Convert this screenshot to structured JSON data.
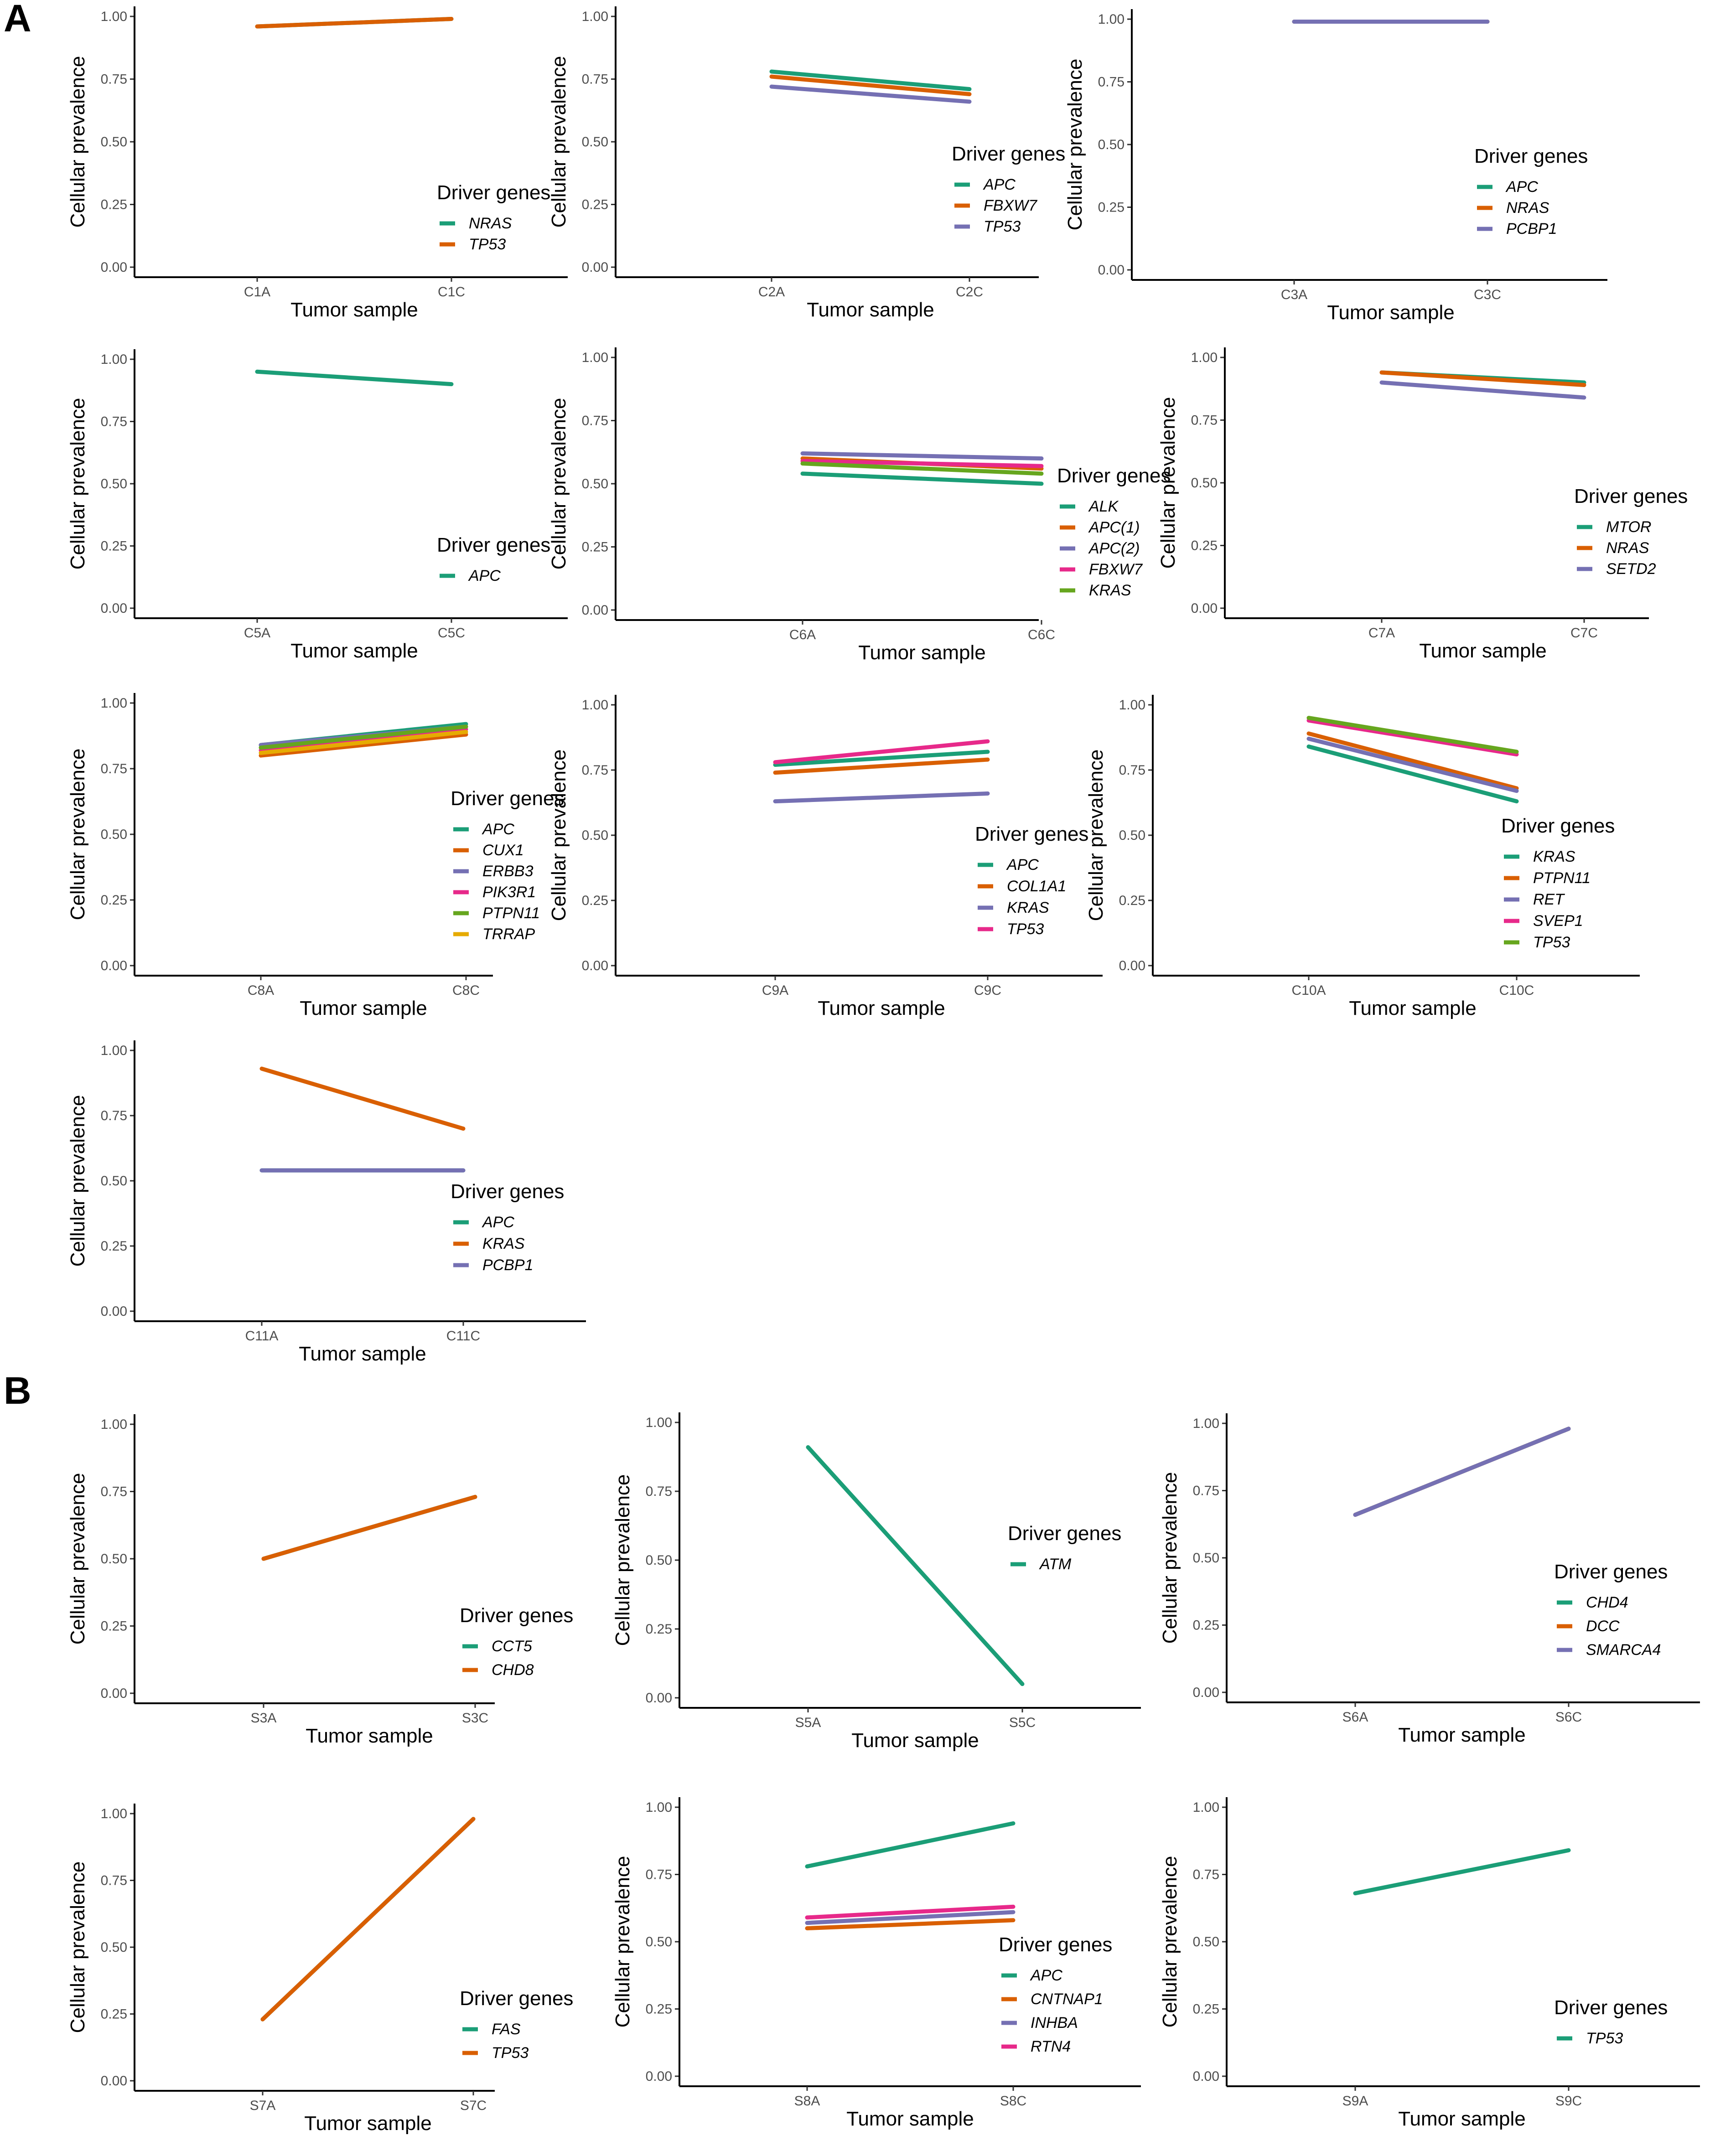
{
  "figure": {
    "panel_labels": [
      "A",
      "B"
    ]
  },
  "chart_data": [
    {
      "type": "line",
      "panel": "A",
      "title": "",
      "xlabel": "Tumor sample",
      "ylabel": "Cellular prevalence",
      "legend_title": "Driver genes",
      "legend_position": "right",
      "grid": false,
      "ylim": [
        0,
        1
      ],
      "yticks": [
        "0.00",
        "0.25",
        "0.50",
        "0.75",
        "1.00"
      ],
      "categories": [
        "C1A",
        "C1C"
      ],
      "series": [
        {
          "name": "NRAS",
          "color": "#1b9e77",
          "values": [
            0.96,
            0.99
          ]
        },
        {
          "name": "TP53",
          "color": "#d95f02",
          "values": [
            0.96,
            0.99
          ]
        }
      ]
    },
    {
      "type": "line",
      "panel": "A",
      "title": "",
      "xlabel": "Tumor sample",
      "ylabel": "Cellular prevalence",
      "legend_title": "Driver genes",
      "legend_position": "bottom-right",
      "grid": false,
      "ylim": [
        0,
        1
      ],
      "yticks": [
        "0.00",
        "0.25",
        "0.50",
        "0.75",
        "1.00"
      ],
      "categories": [
        "C2A",
        "C2C"
      ],
      "series": [
        {
          "name": "APC",
          "color": "#1b9e77",
          "values": [
            0.78,
            0.71
          ]
        },
        {
          "name": "FBXW7",
          "color": "#d95f02",
          "values": [
            0.76,
            0.69
          ]
        },
        {
          "name": "TP53",
          "color": "#7570b3",
          "values": [
            0.72,
            0.66
          ]
        }
      ]
    },
    {
      "type": "line",
      "panel": "A",
      "title": "",
      "xlabel": "Tumor sample",
      "ylabel": "Cellular prevalence",
      "legend_title": "Driver genes",
      "legend_position": "bottom-right",
      "grid": false,
      "ylim": [
        0,
        1
      ],
      "yticks": [
        "0.00",
        "0.25",
        "0.50",
        "0.75",
        "1.00"
      ],
      "categories": [
        "C3A",
        "C3C"
      ],
      "series": [
        {
          "name": "APC",
          "color": "#1b9e77",
          "values": [
            0.99,
            0.99
          ]
        },
        {
          "name": "NRAS",
          "color": "#d95f02",
          "values": [
            0.99,
            0.99
          ]
        },
        {
          "name": "PCBP1",
          "color": "#7570b3",
          "values": [
            0.99,
            0.99
          ]
        }
      ]
    },
    {
      "type": "line",
      "panel": "A",
      "title": "",
      "xlabel": "Tumor sample",
      "ylabel": "Cellular prevalence",
      "legend_title": "Driver genes",
      "legend_position": "right",
      "grid": false,
      "ylim": [
        0,
        1
      ],
      "yticks": [
        "0.00",
        "0.25",
        "0.50",
        "0.75",
        "1.00"
      ],
      "categories": [
        "C5A",
        "C5C"
      ],
      "series": [
        {
          "name": "APC",
          "color": "#1b9e77",
          "values": [
            0.95,
            0.9
          ]
        }
      ]
    },
    {
      "type": "line",
      "panel": "A",
      "title": "",
      "xlabel": "Tumor sample",
      "ylabel": "Cellular prevalence",
      "legend_title": "Driver genes",
      "legend_position": "right",
      "grid": false,
      "ylim": [
        0,
        1
      ],
      "yticks": [
        "0.00",
        "0.25",
        "0.50",
        "0.75",
        "1.00"
      ],
      "categories": [
        "C6A",
        "C6C"
      ],
      "series": [
        {
          "name": "ALK",
          "color": "#1b9e77",
          "values": [
            0.54,
            0.5
          ]
        },
        {
          "name": "APC(1)",
          "color": "#d95f02",
          "values": [
            0.6,
            0.56
          ]
        },
        {
          "name": "APC(2)",
          "color": "#7570b3",
          "values": [
            0.62,
            0.6
          ]
        },
        {
          "name": "FBXW7",
          "color": "#e7298a",
          "values": [
            0.59,
            0.57
          ]
        },
        {
          "name": "KRAS",
          "color": "#66a61e",
          "values": [
            0.58,
            0.54
          ]
        }
      ]
    },
    {
      "type": "line",
      "panel": "A",
      "title": "",
      "xlabel": "Tumor sample",
      "ylabel": "Cellular prevalence",
      "legend_title": "Driver genes",
      "legend_position": "bottom-right",
      "grid": false,
      "ylim": [
        0,
        1
      ],
      "yticks": [
        "0.00",
        "0.25",
        "0.50",
        "0.75",
        "1.00"
      ],
      "categories": [
        "C7A",
        "C7C"
      ],
      "series": [
        {
          "name": "MTOR",
          "color": "#1b9e77",
          "values": [
            0.94,
            0.9
          ]
        },
        {
          "name": "NRAS",
          "color": "#d95f02",
          "values": [
            0.94,
            0.89
          ]
        },
        {
          "name": "SETD2",
          "color": "#7570b3",
          "values": [
            0.9,
            0.84
          ]
        }
      ]
    },
    {
      "type": "line",
      "panel": "A",
      "title": "",
      "xlabel": "Tumor sample",
      "ylabel": "Cellular prevalence",
      "legend_title": "Driver genes",
      "legend_position": "right",
      "grid": false,
      "ylim": [
        0,
        1
      ],
      "yticks": [
        "0.00",
        "0.25",
        "0.50",
        "0.75",
        "1.00"
      ],
      "categories": [
        "C8A",
        "C8C"
      ],
      "series": [
        {
          "name": "APC",
          "color": "#1b9e77",
          "values": [
            0.84,
            0.92
          ]
        },
        {
          "name": "CUX1",
          "color": "#d95f02",
          "values": [
            0.8,
            0.88
          ]
        },
        {
          "name": "ERBB3",
          "color": "#7570b3",
          "values": [
            0.84,
            0.91
          ]
        },
        {
          "name": "PIK3R1",
          "color": "#e7298a",
          "values": [
            0.82,
            0.9
          ]
        },
        {
          "name": "PTPN11",
          "color": "#66a61e",
          "values": [
            0.83,
            0.91
          ]
        },
        {
          "name": "TRRAP",
          "color": "#e6ab02",
          "values": [
            0.81,
            0.89
          ]
        }
      ]
    },
    {
      "type": "line",
      "panel": "A",
      "title": "",
      "xlabel": "Tumor sample",
      "ylabel": "Cellular prevalence",
      "legend_title": "Driver genes",
      "legend_position": "bottom-right",
      "grid": false,
      "ylim": [
        0,
        1
      ],
      "yticks": [
        "0.00",
        "0.25",
        "0.50",
        "0.75",
        "1.00"
      ],
      "categories": [
        "C9A",
        "C9C"
      ],
      "series": [
        {
          "name": "APC",
          "color": "#1b9e77",
          "values": [
            0.77,
            0.82
          ]
        },
        {
          "name": "COL1A1",
          "color": "#d95f02",
          "values": [
            0.74,
            0.79
          ]
        },
        {
          "name": "KRAS",
          "color": "#7570b3",
          "values": [
            0.63,
            0.66
          ]
        },
        {
          "name": "TP53",
          "color": "#e7298a",
          "values": [
            0.78,
            0.86
          ]
        }
      ]
    },
    {
      "type": "line",
      "panel": "A",
      "title": "",
      "xlabel": "Tumor sample",
      "ylabel": "Cellular prevalence",
      "legend_title": "Driver genes",
      "legend_position": "right",
      "grid": false,
      "ylim": [
        0,
        1
      ],
      "yticks": [
        "0.00",
        "0.25",
        "0.50",
        "0.75",
        "1.00"
      ],
      "categories": [
        "C10A",
        "C10C"
      ],
      "series": [
        {
          "name": "KRAS",
          "color": "#1b9e77",
          "values": [
            0.84,
            0.63
          ]
        },
        {
          "name": "PTPN11",
          "color": "#d95f02",
          "values": [
            0.89,
            0.68
          ]
        },
        {
          "name": "RET",
          "color": "#7570b3",
          "values": [
            0.87,
            0.67
          ]
        },
        {
          "name": "SVEP1",
          "color": "#e7298a",
          "values": [
            0.94,
            0.81
          ]
        },
        {
          "name": "TP53",
          "color": "#66a61e",
          "values": [
            0.95,
            0.82
          ]
        }
      ]
    },
    {
      "type": "line",
      "panel": "A",
      "title": "",
      "xlabel": "Tumor sample",
      "ylabel": "Cellular prevalence",
      "legend_title": "Driver genes",
      "legend_position": "right",
      "grid": false,
      "ylim": [
        0,
        1
      ],
      "yticks": [
        "0.00",
        "0.25",
        "0.50",
        "0.75",
        "1.00"
      ],
      "categories": [
        "C11A",
        "C11C"
      ],
      "series": [
        {
          "name": "APC",
          "color": "#1b9e77",
          "values": [
            0.54,
            0.54
          ]
        },
        {
          "name": "KRAS",
          "color": "#d95f02",
          "values": [
            0.93,
            0.7
          ]
        },
        {
          "name": "PCBP1",
          "color": "#7570b3",
          "values": [
            0.54,
            0.54
          ]
        }
      ]
    },
    {
      "type": "line",
      "panel": "B",
      "title": "",
      "xlabel": "Tumor sample",
      "ylabel": "Cellular prevalence",
      "legend_title": "Driver genes",
      "legend_position": "bottom-right",
      "grid": false,
      "ylim": [
        0,
        1
      ],
      "yticks": [
        "0.00",
        "0.25",
        "0.50",
        "0.75",
        "1.00"
      ],
      "categories": [
        "S3A",
        "S3C"
      ],
      "series": [
        {
          "name": "CCT5",
          "color": "#1b9e77",
          "values": [
            0.5,
            0.73
          ]
        },
        {
          "name": "CHD8",
          "color": "#d95f02",
          "values": [
            0.5,
            0.73
          ]
        }
      ]
    },
    {
      "type": "line",
      "panel": "B",
      "title": "",
      "xlabel": "Tumor sample",
      "ylabel": "Cellular prevalence",
      "legend_title": "Driver genes",
      "legend_position": "right",
      "grid": false,
      "ylim": [
        0,
        1
      ],
      "yticks": [
        "0.00",
        "0.25",
        "0.50",
        "0.75",
        "1.00"
      ],
      "categories": [
        "S5A",
        "S5C"
      ],
      "series": [
        {
          "name": "ATM",
          "color": "#1b9e77",
          "values": [
            0.91,
            0.05
          ]
        }
      ]
    },
    {
      "type": "line",
      "panel": "B",
      "title": "",
      "xlabel": "Tumor sample",
      "ylabel": "Cellular prevalence",
      "legend_title": "Driver genes",
      "legend_position": "right",
      "grid": false,
      "ylim": [
        0,
        1
      ],
      "yticks": [
        "0.00",
        "0.25",
        "0.50",
        "0.75",
        "1.00"
      ],
      "categories": [
        "S6A",
        "S6C"
      ],
      "series": [
        {
          "name": "CHD4",
          "color": "#1b9e77",
          "values": [
            0.66,
            0.98
          ]
        },
        {
          "name": "DCC",
          "color": "#d95f02",
          "values": [
            0.66,
            0.98
          ]
        },
        {
          "name": "SMARCA4",
          "color": "#7570b3",
          "values": [
            0.66,
            0.98
          ]
        }
      ]
    },
    {
      "type": "line",
      "panel": "B",
      "title": "",
      "xlabel": "Tumor sample",
      "ylabel": "Cellular prevalence",
      "legend_title": "Driver genes",
      "legend_position": "bottom-right",
      "grid": false,
      "ylim": [
        0,
        1
      ],
      "yticks": [
        "0.00",
        "0.25",
        "0.50",
        "0.75",
        "1.00"
      ],
      "categories": [
        "S7A",
        "S7C"
      ],
      "series": [
        {
          "name": "FAS",
          "color": "#1b9e77",
          "values": [
            0.23,
            0.98
          ]
        },
        {
          "name": "TP53",
          "color": "#d95f02",
          "values": [
            0.23,
            0.98
          ]
        }
      ]
    },
    {
      "type": "line",
      "panel": "B",
      "title": "",
      "xlabel": "Tumor sample",
      "ylabel": "Cellular prevalence",
      "legend_title": "Driver genes",
      "legend_position": "bottom-right",
      "grid": false,
      "ylim": [
        0,
        1
      ],
      "yticks": [
        "0.00",
        "0.25",
        "0.50",
        "0.75",
        "1.00"
      ],
      "categories": [
        "S8A",
        "S8C"
      ],
      "series": [
        {
          "name": "APC",
          "color": "#1b9e77",
          "values": [
            0.78,
            0.94
          ]
        },
        {
          "name": "CNTNAP1",
          "color": "#d95f02",
          "values": [
            0.55,
            0.58
          ]
        },
        {
          "name": "INHBA",
          "color": "#7570b3",
          "values": [
            0.57,
            0.61
          ]
        },
        {
          "name": "RTN4",
          "color": "#e7298a",
          "values": [
            0.59,
            0.63
          ]
        }
      ]
    },
    {
      "type": "line",
      "panel": "B",
      "title": "",
      "xlabel": "Tumor sample",
      "ylabel": "Cellular prevalence",
      "legend_title": "Driver genes",
      "legend_position": "right",
      "grid": false,
      "ylim": [
        0,
        1
      ],
      "yticks": [
        "0.00",
        "0.25",
        "0.50",
        "0.75",
        "1.00"
      ],
      "categories": [
        "S9A",
        "S9C"
      ],
      "series": [
        {
          "name": "TP53",
          "color": "#1b9e77",
          "values": [
            0.68,
            0.84
          ]
        }
      ]
    }
  ]
}
